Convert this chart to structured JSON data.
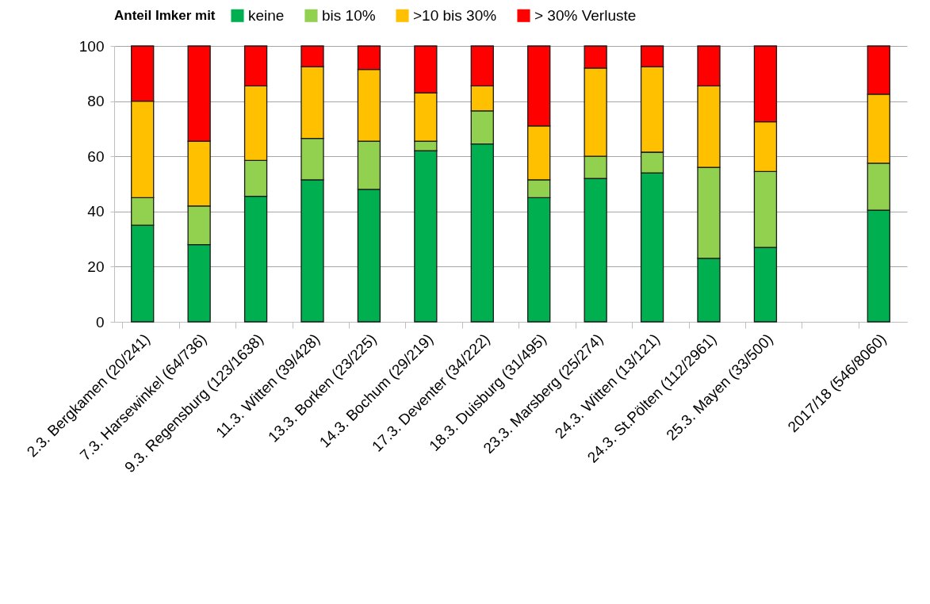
{
  "chart_data": {
    "type": "bar",
    "stacked": true,
    "legend_title": "Anteil Imker mit",
    "legend": "top",
    "grid": "y",
    "categories": [
      "2.3. Bergkamen (20/241)",
      "7.3. Harsewinkel (64/736)",
      "9.3. Regensburg (123/1638)",
      "11.3.  Witten (39/428)",
      "13.3. Borken (23/225)",
      "14.3. Bochum (29/219)",
      "17.3. Deventer (34/222)",
      "18.3. Duisburg (31/495)",
      "23.3. Marsberg (25/274)",
      "24.3. Witten (13/121)",
      "24.3. St.Pölten (112/2961)",
      "25.3. Mayen (33/500)",
      null,
      "2017/18    (546/8060)"
    ],
    "series": [
      {
        "name": "keine",
        "color": "#00b050",
        "values": [
          35,
          28,
          45.5,
          51.5,
          48,
          62,
          64.5,
          45,
          52,
          54,
          23,
          27,
          null,
          40.5
        ]
      },
      {
        "name": "bis 10%",
        "color": "#92d050",
        "values": [
          10,
          14,
          13,
          15,
          17.5,
          3.5,
          12,
          6.5,
          8,
          7.5,
          33,
          27.5,
          null,
          17
        ]
      },
      {
        "name": ">10 bis 30%",
        "color": "#ffc000",
        "values": [
          35,
          23.5,
          27,
          26,
          26,
          17.5,
          9,
          19.5,
          32,
          31,
          29.5,
          18,
          null,
          25
        ]
      },
      {
        "name": "> 30% Verluste",
        "color": "#ff0000",
        "values": [
          20,
          34.5,
          14.5,
          7.5,
          8.5,
          17,
          14.5,
          29,
          8,
          7.5,
          14.5,
          27.5,
          null,
          17.5
        ]
      }
    ],
    "ylim": [
      0,
      100
    ],
    "yticks": [
      0,
      20,
      40,
      60,
      80,
      100
    ]
  }
}
